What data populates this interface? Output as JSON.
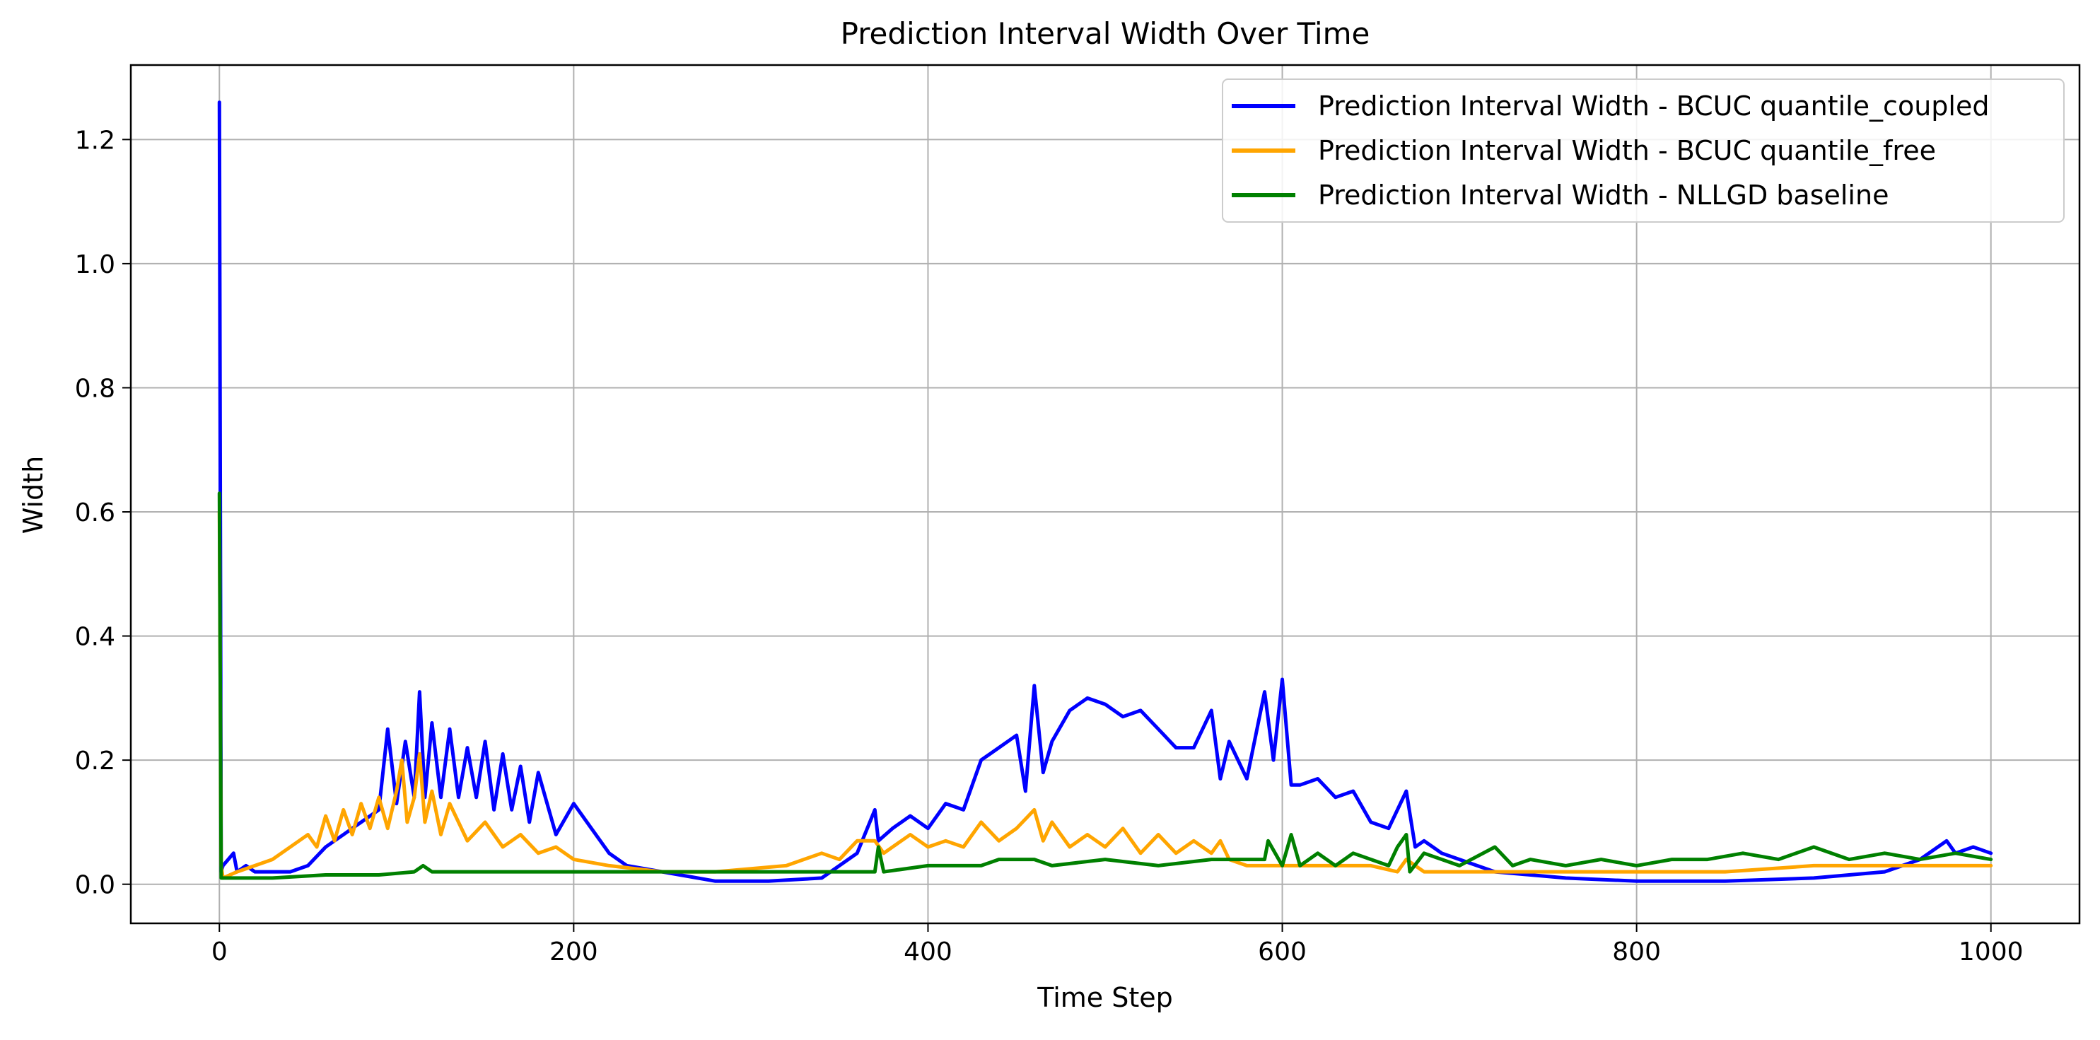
{
  "chart_data": {
    "type": "line",
    "title": "Prediction Interval Width Over Time",
    "xlabel": "Time Step",
    "ylabel": "Width",
    "xlim": [
      -50,
      1050
    ],
    "ylim": [
      -0.063,
      1.32
    ],
    "xticks": [
      0,
      200,
      400,
      600,
      800,
      1000
    ],
    "xtick_labels": [
      "0",
      "200",
      "400",
      "600",
      "800",
      "1000"
    ],
    "yticks": [
      0.0,
      0.2,
      0.4,
      0.6,
      0.8,
      1.0,
      1.2
    ],
    "ytick_labels": [
      "0.0",
      "0.2",
      "0.4",
      "0.6",
      "0.8",
      "1.0",
      "1.2"
    ],
    "grid": true,
    "legend_position": "top-right",
    "series": [
      {
        "name": "Prediction Interval Width - BCUC quantile_coupled",
        "color": "#0000ff",
        "x": [
          0,
          1,
          2,
          5,
          8,
          10,
          15,
          20,
          30,
          40,
          50,
          60,
          70,
          80,
          90,
          95,
          100,
          105,
          110,
          113,
          116,
          120,
          125,
          130,
          135,
          140,
          145,
          150,
          155,
          160,
          165,
          170,
          175,
          180,
          190,
          200,
          210,
          220,
          230,
          250,
          280,
          310,
          340,
          360,
          370,
          372,
          380,
          390,
          400,
          410,
          420,
          430,
          440,
          450,
          455,
          460,
          465,
          470,
          480,
          490,
          500,
          510,
          520,
          530,
          540,
          550,
          560,
          565,
          570,
          580,
          590,
          595,
          600,
          605,
          610,
          620,
          630,
          640,
          650,
          660,
          670,
          675,
          680,
          690,
          700,
          720,
          760,
          800,
          850,
          900,
          940,
          960,
          975,
          980,
          990,
          1000
        ],
        "y": [
          1.26,
          0.02,
          0.03,
          0.04,
          0.05,
          0.02,
          0.03,
          0.02,
          0.02,
          0.02,
          0.03,
          0.06,
          0.08,
          0.1,
          0.12,
          0.25,
          0.13,
          0.23,
          0.14,
          0.31,
          0.14,
          0.26,
          0.14,
          0.25,
          0.14,
          0.22,
          0.14,
          0.23,
          0.12,
          0.21,
          0.12,
          0.19,
          0.1,
          0.18,
          0.08,
          0.13,
          0.09,
          0.05,
          0.03,
          0.02,
          0.005,
          0.005,
          0.01,
          0.05,
          0.12,
          0.07,
          0.09,
          0.11,
          0.09,
          0.13,
          0.12,
          0.2,
          0.22,
          0.24,
          0.15,
          0.32,
          0.18,
          0.23,
          0.28,
          0.3,
          0.29,
          0.27,
          0.28,
          0.25,
          0.22,
          0.22,
          0.28,
          0.17,
          0.23,
          0.17,
          0.31,
          0.2,
          0.33,
          0.16,
          0.16,
          0.17,
          0.14,
          0.15,
          0.1,
          0.09,
          0.15,
          0.06,
          0.07,
          0.05,
          0.04,
          0.02,
          0.01,
          0.005,
          0.005,
          0.01,
          0.02,
          0.04,
          0.07,
          0.05,
          0.06,
          0.05
        ]
      },
      {
        "name": "Prediction Interval Width - BCUC quantile_free",
        "color": "#ffa500",
        "x": [
          0,
          1,
          2,
          10,
          20,
          30,
          40,
          50,
          55,
          60,
          65,
          70,
          75,
          80,
          85,
          90,
          95,
          100,
          103,
          106,
          110,
          113,
          116,
          120,
          125,
          130,
          140,
          150,
          160,
          170,
          180,
          190,
          200,
          220,
          250,
          280,
          320,
          340,
          350,
          360,
          370,
          375,
          380,
          390,
          400,
          410,
          420,
          430,
          440,
          450,
          460,
          465,
          470,
          480,
          490,
          500,
          510,
          520,
          530,
          540,
          550,
          560,
          565,
          570,
          580,
          600,
          620,
          650,
          665,
          670,
          680,
          700,
          740,
          800,
          850,
          900,
          950,
          1000
        ],
        "y": [
          0.6,
          0.03,
          0.01,
          0.02,
          0.03,
          0.04,
          0.06,
          0.08,
          0.06,
          0.11,
          0.07,
          0.12,
          0.08,
          0.13,
          0.09,
          0.14,
          0.09,
          0.15,
          0.2,
          0.1,
          0.14,
          0.21,
          0.1,
          0.15,
          0.08,
          0.13,
          0.07,
          0.1,
          0.06,
          0.08,
          0.05,
          0.06,
          0.04,
          0.03,
          0.02,
          0.02,
          0.03,
          0.05,
          0.04,
          0.07,
          0.07,
          0.05,
          0.06,
          0.08,
          0.06,
          0.07,
          0.06,
          0.1,
          0.07,
          0.09,
          0.12,
          0.07,
          0.1,
          0.06,
          0.08,
          0.06,
          0.09,
          0.05,
          0.08,
          0.05,
          0.07,
          0.05,
          0.07,
          0.04,
          0.03,
          0.03,
          0.03,
          0.03,
          0.02,
          0.04,
          0.02,
          0.02,
          0.02,
          0.02,
          0.02,
          0.03,
          0.03,
          0.03
        ]
      },
      {
        "name": "Prediction Interval Width - NLLGD baseline",
        "color": "#008000",
        "x": [
          0,
          1,
          2,
          10,
          30,
          60,
          90,
          110,
          115,
          120,
          150,
          200,
          250,
          300,
          340,
          370,
          372,
          375,
          400,
          430,
          440,
          460,
          470,
          500,
          530,
          560,
          590,
          592,
          600,
          605,
          610,
          620,
          630,
          640,
          660,
          665,
          670,
          672,
          680,
          700,
          720,
          730,
          740,
          760,
          780,
          800,
          820,
          840,
          860,
          880,
          900,
          920,
          940,
          960,
          980,
          1000
        ],
        "y": [
          0.63,
          0.01,
          0.01,
          0.01,
          0.01,
          0.015,
          0.015,
          0.02,
          0.03,
          0.02,
          0.02,
          0.02,
          0.02,
          0.02,
          0.02,
          0.02,
          0.06,
          0.02,
          0.03,
          0.03,
          0.04,
          0.04,
          0.03,
          0.04,
          0.03,
          0.04,
          0.04,
          0.07,
          0.03,
          0.08,
          0.03,
          0.05,
          0.03,
          0.05,
          0.03,
          0.06,
          0.08,
          0.02,
          0.05,
          0.03,
          0.06,
          0.03,
          0.04,
          0.03,
          0.04,
          0.03,
          0.04,
          0.04,
          0.05,
          0.04,
          0.06,
          0.04,
          0.05,
          0.04,
          0.05,
          0.04
        ]
      }
    ]
  }
}
